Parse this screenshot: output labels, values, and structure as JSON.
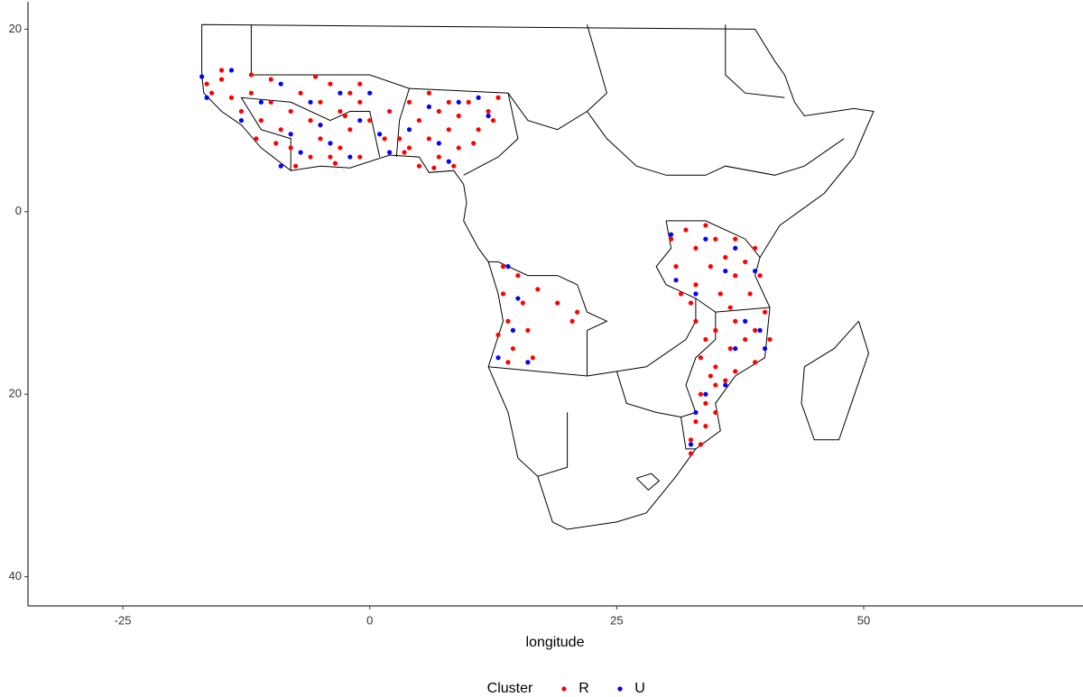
{
  "chart_data": {
    "type": "scatter",
    "x_label": "longitude",
    "legend_title": "Cluster",
    "legend_position": "bottom",
    "xlim": [
      -34.6,
      72.2
    ],
    "ylim": [
      -43.2,
      23
    ],
    "xticks": [
      -25,
      0,
      25,
      50
    ],
    "yticks": [
      20,
      0,
      {
        "value": -20,
        "label": "20"
      },
      {
        "value": -40,
        "label": "40"
      }
    ],
    "grid": false,
    "series": [
      {
        "name": "R",
        "color": "#ff0000",
        "x": [
          -16.5,
          -16,
          -15,
          -14,
          -13,
          -12,
          -11,
          -10,
          -9,
          -8,
          -8,
          -7,
          -6,
          -6,
          -5,
          -5,
          -4,
          -4,
          -3,
          -3,
          -2,
          -2,
          -1,
          -1,
          0,
          -1,
          -15,
          -12,
          -10,
          -7.5,
          -3.5,
          -9.5,
          -11.5,
          -5.5,
          -2.5,
          2,
          3,
          4,
          4,
          5,
          5,
          6,
          6,
          7,
          7,
          8,
          8,
          9,
          9,
          10,
          11,
          12,
          13,
          3.5,
          6.5,
          8.5,
          1.5,
          10.5,
          12.5,
          13.5,
          14,
          14.5,
          15,
          15.5,
          16,
          16.5,
          14,
          13,
          19,
          20.5,
          21,
          17,
          13.5,
          30.5,
          31,
          31.5,
          32,
          33,
          33,
          34,
          34.5,
          35,
          35.5,
          36,
          37,
          37,
          38,
          38.5,
          39,
          39.5,
          36.5,
          32.5,
          33,
          34,
          35,
          33.5,
          35,
          36.5,
          37,
          38,
          39,
          40,
          40.5,
          39,
          37,
          35,
          34,
          33.5,
          33,
          34,
          35,
          32.5,
          33.5,
          32.5,
          34.5,
          36
        ],
        "values": [
          14,
          13,
          14.5,
          12.5,
          11,
          13,
          10,
          12,
          9,
          11,
          7,
          13,
          10,
          6,
          12,
          8,
          14,
          6,
          11,
          7,
          13,
          9,
          12,
          6,
          10,
          14,
          15.5,
          15,
          14.5,
          5,
          5.3,
          7.5,
          8,
          14.8,
          10.5,
          11,
          8,
          12,
          7,
          10,
          5,
          13,
          8,
          11,
          6,
          12,
          9,
          7,
          10.5,
          12,
          9,
          11,
          12.5,
          6.5,
          4.8,
          5,
          8,
          7.5,
          10,
          -9,
          -12,
          -15,
          -7,
          -10,
          -13,
          -16,
          -16.5,
          -13.5,
          -10,
          -12,
          -11,
          -8.5,
          -6,
          -3,
          -6,
          -9,
          -2,
          -4,
          -8,
          -1.5,
          -6,
          -3,
          -9,
          -5,
          -7,
          -3,
          -5.5,
          -9,
          -4,
          -7,
          -10.5,
          -10,
          -12,
          -14,
          -13,
          -16,
          -17,
          -15,
          -12,
          -14,
          -13,
          -11,
          -14,
          -16.5,
          -17.5,
          -19,
          -21,
          -20,
          -23,
          -23.5,
          -22,
          -25,
          -25.5,
          -26.5,
          -18,
          -18.5
        ]
      },
      {
        "name": "U",
        "color": "#0000ff",
        "x": [
          -17,
          -16.5,
          -14,
          -13,
          -11,
          -9,
          -8,
          -7,
          -6,
          -5,
          -4,
          -3,
          -2,
          -1,
          0,
          -9,
          1,
          2,
          4,
          6,
          7,
          9,
          11,
          12,
          8,
          14,
          15,
          14.5,
          16,
          13,
          30.5,
          31,
          33,
          34,
          36,
          37,
          39,
          40,
          38,
          36,
          34,
          33,
          32.5,
          39.5,
          37
        ],
        "values": [
          14.8,
          12.5,
          15.5,
          10,
          12,
          14,
          8.5,
          6.5,
          12,
          9.5,
          7.5,
          13,
          6,
          10,
          13,
          5,
          8.5,
          6.5,
          9,
          11.5,
          7.5,
          12,
          12.5,
          10.5,
          5.5,
          -6,
          -9.5,
          -13,
          -16.5,
          -16,
          -2.5,
          -7.5,
          -9,
          -3,
          -6.5,
          -4,
          -6.5,
          -15,
          -12,
          -19,
          -20,
          -22,
          -25.5,
          -13,
          -15
        ]
      }
    ]
  }
}
